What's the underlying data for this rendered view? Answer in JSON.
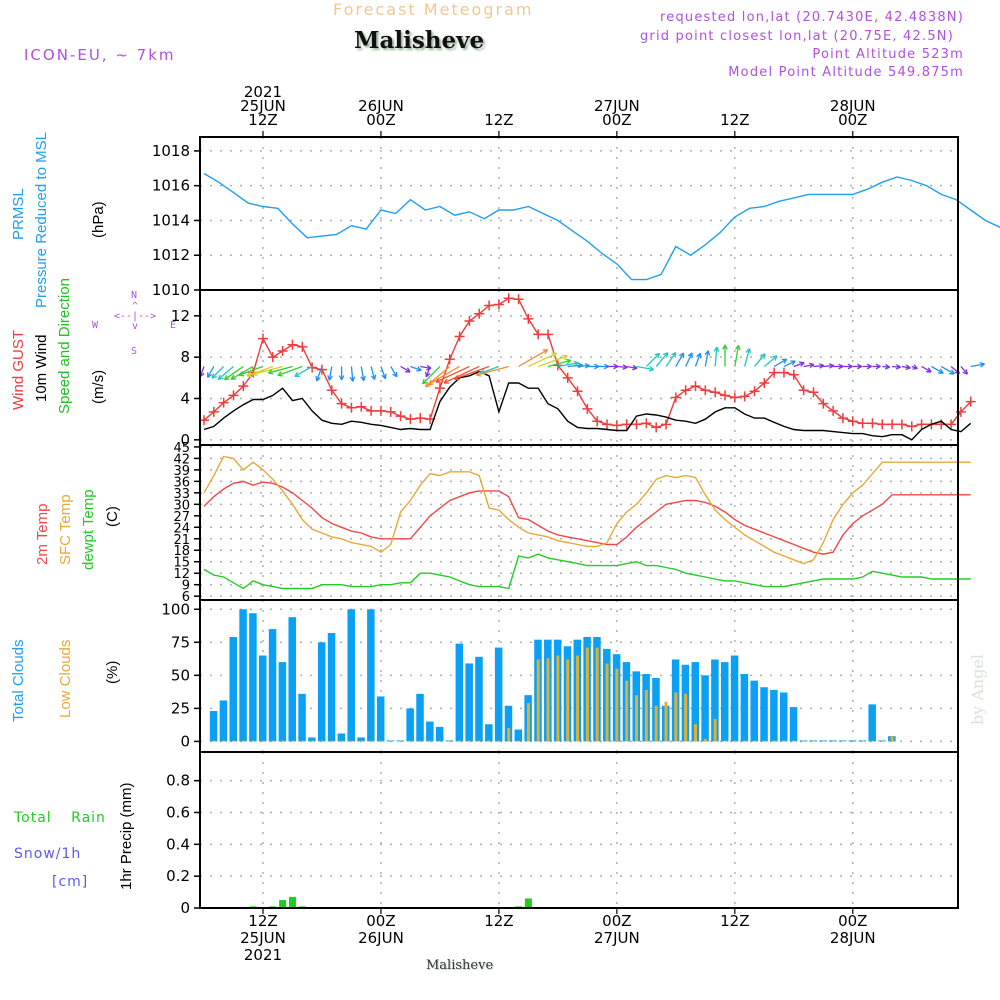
{
  "header": {
    "super_title": "Forecast Meteogram",
    "location": "Malisheve",
    "model": "ICON-EU, ~ 7km",
    "requested": "requested lon,lat (20.7430E, 42.4838N)",
    "grid_point": "grid point closest lon,lat (20.75E, 42.5N)",
    "point_altitude": "Point Altitude 523m",
    "model_altitude": "Model Point Altitude 549.875m",
    "footer_location": "Malisheve",
    "watermark": "by Angel"
  },
  "colors": {
    "purple_text": "#b050e0",
    "super_title": "#f0c890",
    "pressure": "#1ea0f0",
    "gust": "#f03c3c",
    "wind": "#000000",
    "wind_dir_label": "#22c022",
    "t2m": "#f04848",
    "sfc": "#e8a838",
    "dewpt": "#22cc22",
    "total_clouds": "#0aa0f5",
    "low_clouds": "#e0b030",
    "rain": "#22cc22",
    "snow": "#5a5af0"
  },
  "time_axis": {
    "top_ticks": [
      {
        "hour": 6,
        "lines": [
          "2021",
          "25JUN",
          "12Z"
        ]
      },
      {
        "hour": 18,
        "lines": [
          "26JUN",
          "00Z"
        ]
      },
      {
        "hour": 30,
        "lines": [
          "12Z"
        ]
      },
      {
        "hour": 42,
        "lines": [
          "27JUN",
          "00Z"
        ]
      },
      {
        "hour": 54,
        "lines": [
          "12Z"
        ]
      },
      {
        "hour": 66,
        "lines": [
          "28JUN",
          "00Z"
        ]
      }
    ],
    "bottom_ticks": [
      {
        "hour": 6,
        "lines": [
          "12Z",
          "25JUN",
          "2021"
        ]
      },
      {
        "hour": 18,
        "lines": [
          "00Z",
          "26JUN"
        ]
      },
      {
        "hour": 30,
        "lines": [
          "12Z"
        ]
      },
      {
        "hour": 42,
        "lines": [
          "00Z",
          "27JUN"
        ]
      },
      {
        "hour": 54,
        "lines": [
          "12Z"
        ]
      },
      {
        "hour": 66,
        "lines": [
          "00Z",
          "28JUN"
        ]
      }
    ],
    "start_label": "06Z 25JUN 2021",
    "hours": 78
  },
  "panel_labels": {
    "pressure": [
      "PRMSL",
      "Pressure Reduced to MSL",
      "(hPa)"
    ],
    "wind": [
      "Wind GUST",
      "10m Wind",
      "Speed and Direction",
      "(m/s)"
    ],
    "compass": {
      "n": "N",
      "s": "S",
      "w": "W",
      "e": "E"
    },
    "temp": [
      "2m Temp",
      "SFC Temp",
      "dewpt Temp",
      "(C)"
    ],
    "clouds": [
      "Total Clouds",
      "Low Clouds",
      "(%)"
    ],
    "precip": [
      "Total",
      "Rain",
      "Snow/1h",
      "[cm]",
      "1hr Precip (mm)"
    ]
  },
  "chart_data": [
    {
      "type": "line",
      "title": "PRMSL Pressure Reduced to MSL",
      "ylabel": "(hPa)",
      "ylim": [
        1010,
        1018.8
      ],
      "yticks": [
        1010,
        1012,
        1014,
        1016,
        1018
      ],
      "x_start_hour": 0,
      "x_step_hours": 1.5,
      "series": [
        {
          "name": "PRMSL",
          "values": [
            1016.7,
            1016.2,
            1015.6,
            1015.0,
            1014.8,
            1014.7,
            1013.8,
            1013.0,
            1013.1,
            1013.2,
            1013.7,
            1013.5,
            1014.6,
            1014.4,
            1015.2,
            1014.6,
            1014.8,
            1014.3,
            1014.5,
            1014.1,
            1014.6,
            1014.6,
            1014.8,
            1014.4,
            1014.0,
            1013.4,
            1012.8,
            1012.1,
            1011.5,
            1010.6,
            1010.6,
            1010.9,
            1012.5,
            1012.0,
            1012.6,
            1013.3,
            1014.2,
            1014.7,
            1014.8,
            1015.1,
            1015.3,
            1015.5,
            1015.5,
            1015.5,
            1015.5,
            1015.8,
            1016.2,
            1016.5,
            1016.3,
            1016.0,
            1015.5,
            1015.2,
            1014.6,
            1014.0,
            1013.6,
            1013.5,
            1013.3,
            1013.4,
            1013.8,
            1014.5,
            1015.5,
            1016.3,
            1016.8,
            1017.1,
            1017.4,
            1017.6,
            1017.3,
            1017.3,
            1017.7,
            1018.0,
            1018.1,
            1018.1,
            1018.0,
            1017.5,
            1016.8,
            1016.2,
            1015.8
          ]
        }
      ],
      "grid": true
    },
    {
      "type": "line",
      "title": "Wind GUST / 10m Wind Speed and Direction",
      "ylabel": "(m/s)",
      "ylim": [
        -0.5,
        14.5
      ],
      "yticks": [
        0,
        4,
        8,
        12
      ],
      "x_start_hour": 0,
      "x_step_hours": 1,
      "series": [
        {
          "name": "Wind GUST",
          "marker": "plus",
          "values": [
            1.9,
            2.7,
            3.6,
            4.3,
            5.2,
            6.5,
            9.8,
            8.0,
            8.6,
            9.2,
            9.0,
            7.0,
            6.8,
            4.8,
            3.5,
            3.1,
            3.2,
            2.8,
            2.8,
            2.7,
            2.3,
            2.0,
            2.1,
            2.0,
            5.0,
            7.8,
            10.0,
            11.5,
            12.2,
            13.0,
            13.1,
            13.7,
            13.6,
            11.7,
            10.2,
            10.2,
            7.2,
            6.0,
            4.7,
            3.0,
            1.8,
            1.5,
            1.4,
            1.5,
            1.5,
            1.6,
            1.2,
            1.5,
            4.1,
            4.8,
            5.2,
            4.8,
            4.6,
            4.3,
            4.1,
            4.2,
            4.7,
            5.5,
            6.5,
            6.5,
            6.3,
            4.8,
            4.6,
            3.5,
            2.8,
            2.1,
            1.8,
            1.6,
            1.6,
            1.5,
            1.5,
            1.5,
            1.3,
            1.5,
            1.5,
            1.5,
            1.5,
            2.7,
            3.7
          ]
        },
        {
          "name": "10m Wind",
          "values": [
            1.0,
            1.3,
            2.1,
            2.8,
            3.4,
            3.9,
            3.9,
            4.3,
            5.0,
            3.8,
            4.0,
            2.8,
            1.9,
            1.6,
            1.5,
            1.8,
            1.7,
            1.5,
            1.4,
            1.2,
            1.0,
            1.1,
            1.0,
            1.0,
            3.7,
            5.1,
            6.0,
            6.2,
            6.6,
            6.2,
            2.7,
            5.5,
            5.5,
            5.0,
            5.0,
            3.5,
            3.0,
            1.8,
            1.2,
            1.1,
            1.1,
            1.0,
            0.9,
            0.9,
            2.3,
            2.5,
            2.4,
            2.2,
            1.9,
            1.8,
            1.6,
            2.0,
            2.7,
            3.1,
            3.1,
            2.5,
            2.1,
            2.1,
            1.7,
            1.3,
            1.0,
            0.9,
            0.9,
            0.9,
            0.8,
            0.7,
            0.6,
            0.6,
            0.4,
            0.3,
            0.5,
            0.5,
            0.0,
            1.0,
            1.5,
            1.8,
            1.0,
            0.8,
            1.6
          ]
        }
      ],
      "wind_direction_deg": [
        200,
        210,
        225,
        230,
        235,
        240,
        250,
        250,
        255,
        255,
        250,
        240,
        200,
        190,
        180,
        175,
        170,
        165,
        160,
        150,
        120,
        110,
        100,
        200,
        225,
        230,
        240,
        245,
        245,
        250,
        250,
        255,
        60,
        65,
        70,
        75,
        80,
        85,
        85,
        90,
        90,
        90,
        95,
        100,
        100,
        45,
        40,
        35,
        30,
        25,
        20,
        10,
        5,
        0,
        10,
        15,
        40,
        50,
        60,
        65,
        70,
        80,
        85,
        85,
        90,
        90,
        90,
        90,
        90,
        95,
        95,
        100,
        110,
        120,
        120,
        120,
        130,
        140,
        80
      ],
      "grid": true
    },
    {
      "type": "line",
      "title": "2m Temp / SFC Temp / dewpt Temp",
      "ylabel": "(C)",
      "ylim": [
        5,
        45.5
      ],
      "yticks": [
        6,
        9,
        12,
        15,
        18,
        21,
        24,
        27,
        30,
        33,
        36,
        39,
        42,
        45
      ],
      "x_start_hour": 0,
      "x_step_hours": 1,
      "series": [
        {
          "name": "2m Temp",
          "values": [
            29.5,
            32.0,
            34.0,
            35.5,
            36.0,
            35.0,
            35.8,
            35.5,
            34.5,
            33.0,
            31.0,
            29.0,
            26.5,
            25.0,
            24.0,
            23.0,
            22.5,
            21.5,
            21.0,
            21.0,
            21.0,
            21.0,
            24.0,
            27.0,
            29.0,
            31.0,
            32.0,
            33.0,
            33.5,
            33.5,
            33.5,
            32.0,
            26.5,
            26.0,
            24.5,
            23.0,
            22.0,
            21.5,
            21.0,
            20.5,
            20.0,
            19.5,
            19.5,
            21.5,
            24.0,
            26.0,
            28.0,
            30.0,
            30.5,
            31.0,
            31.0,
            30.5,
            29.5,
            28.0,
            26.0,
            24.5,
            23.5,
            22.5,
            21.5,
            20.5,
            19.5,
            18.5,
            17.5,
            17.0,
            17.5,
            22.0,
            25.0,
            27.0,
            28.5,
            30.0,
            32.5,
            32.5,
            32.5,
            32.5,
            32.5,
            32.5,
            32.5,
            32.5,
            32.5
          ]
        },
        {
          "name": "SFC Temp",
          "values": [
            33.0,
            37.5,
            42.5,
            42.0,
            39.0,
            41.0,
            39.0,
            36.5,
            33.5,
            30.0,
            26.0,
            23.5,
            22.5,
            21.5,
            21.0,
            20.0,
            19.5,
            19.0,
            17.5,
            19.5,
            28.0,
            31.0,
            35.0,
            38.0,
            37.5,
            38.5,
            38.5,
            38.5,
            37.5,
            29.0,
            28.5,
            26.0,
            24.0,
            22.5,
            22.0,
            21.5,
            20.5,
            20.0,
            19.5,
            19.0,
            19.0,
            20.0,
            25.0,
            28.0,
            30.0,
            33.0,
            36.5,
            37.5,
            37.0,
            37.5,
            37.0,
            32.5,
            28.5,
            26.0,
            24.0,
            22.0,
            20.5,
            19.0,
            17.5,
            16.5,
            15.5,
            14.5,
            15.5,
            20.0,
            26.0,
            30.0,
            33.0,
            35.0,
            38.0,
            41.0,
            41.0,
            41.0,
            41.0,
            41.0,
            41.0,
            41.0,
            41.0,
            41.0,
            41.0
          ]
        },
        {
          "name": "dewpt Temp",
          "values": [
            13.0,
            11.5,
            11.0,
            9.5,
            8.0,
            10.0,
            9.0,
            8.5,
            8.0,
            8.0,
            8.0,
            8.0,
            9.0,
            9.0,
            9.0,
            8.5,
            8.5,
            8.5,
            9.0,
            9.0,
            9.5,
            9.5,
            12.0,
            12.0,
            11.5,
            11.0,
            10.0,
            9.0,
            8.5,
            8.5,
            8.5,
            8.0,
            16.5,
            16.0,
            17.0,
            16.0,
            15.5,
            15.0,
            14.5,
            14.0,
            14.0,
            14.0,
            14.0,
            14.5,
            15.0,
            14.0,
            14.0,
            13.5,
            13.0,
            12.0,
            11.5,
            11.0,
            10.5,
            10.0,
            10.0,
            9.5,
            9.0,
            8.5,
            8.5,
            8.5,
            9.0,
            9.5,
            10.0,
            10.5,
            10.5,
            10.5,
            10.5,
            11.0,
            12.5,
            12.0,
            11.5,
            11.0,
            11.0,
            11.0,
            10.5,
            10.5,
            10.5,
            10.5,
            10.5
          ]
        }
      ],
      "grid": true
    },
    {
      "type": "bar",
      "title": "Total Clouds / Low Clouds",
      "ylabel": "(%)",
      "ylim": [
        -8,
        107
      ],
      "yticks": [
        0,
        25,
        50,
        75,
        100
      ],
      "x_start_hour": 1,
      "x_step_hours": 1,
      "series": [
        {
          "name": "Total Clouds",
          "values": [
            23,
            31,
            79,
            100,
            97,
            65,
            85,
            60,
            94,
            36,
            3,
            75,
            82,
            6,
            100,
            3,
            100,
            34,
            0,
            0,
            25,
            36,
            15,
            11,
            0,
            74,
            59,
            64,
            13,
            71,
            27,
            9,
            35,
            77,
            77,
            77,
            72,
            77,
            79,
            79,
            70,
            66,
            60,
            53,
            51,
            48,
            27,
            62,
            58,
            60,
            50,
            62,
            60,
            65,
            51,
            46,
            41,
            39,
            37,
            26,
            0,
            0,
            0,
            0,
            0,
            0,
            0,
            28,
            0,
            4
          ]
        },
        {
          "name": "Low Clouds",
          "values": [
            0,
            0,
            0,
            0,
            0,
            0,
            0,
            0,
            0,
            0,
            0,
            0,
            0,
            0,
            0,
            0,
            0,
            0,
            0,
            0,
            0,
            0,
            0,
            0,
            0,
            0,
            0,
            0,
            0,
            0,
            10,
            0,
            29,
            62,
            63,
            65,
            62,
            65,
            71,
            71,
            59,
            55,
            46,
            35,
            39,
            27,
            30,
            37,
            36,
            13,
            2,
            17,
            0,
            0,
            0,
            0,
            0,
            0,
            0,
            0,
            0,
            0,
            0,
            0,
            0,
            0,
            0,
            0,
            0,
            4
          ]
        }
      ],
      "grid": true
    },
    {
      "type": "bar",
      "title": "Total Rain / Snow 1h",
      "ylabel": "1hr Precip (mm)",
      "ylim": [
        0,
        0.98
      ],
      "yticks": [
        0,
        0.2,
        0.4,
        0.6,
        0.8
      ],
      "yticklabels": [
        "0",
        "0.2",
        "0.4",
        "0.6",
        "0.8"
      ],
      "x_start_hour": 0,
      "x_step_hours": 1,
      "series": [
        {
          "name": "Total Rain",
          "bars": [
            {
              "hour": 5,
              "value": 0.01
            },
            {
              "hour": 7,
              "value": 0.01
            },
            {
              "hour": 8,
              "value": 0.05
            },
            {
              "hour": 9,
              "value": 0.07
            },
            {
              "hour": 10,
              "value": 0.01
            },
            {
              "hour": 32,
              "value": 0.01
            },
            {
              "hour": 33,
              "value": 0.06
            }
          ]
        },
        {
          "name": "Snow/1h",
          "bars": []
        }
      ],
      "grid": true
    }
  ]
}
